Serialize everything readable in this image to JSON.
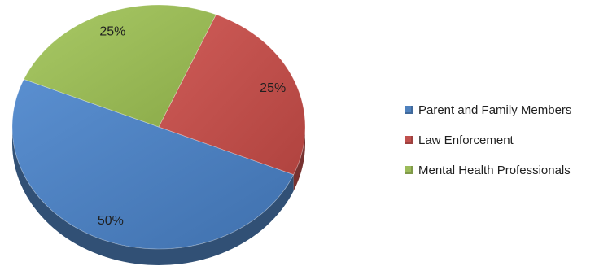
{
  "chart_data": {
    "type": "pie",
    "title": "",
    "categories": [
      "Parent and Family Members",
      "Law Enforcement",
      "Mental Health Professionals"
    ],
    "values": [
      50,
      25,
      25
    ],
    "data_labels": [
      "50%",
      "25%",
      "25%"
    ],
    "colors": [
      "#4f81bd",
      "#c0504d",
      "#9bbb59"
    ],
    "legend_position": "right",
    "style": "3d-tilted"
  }
}
